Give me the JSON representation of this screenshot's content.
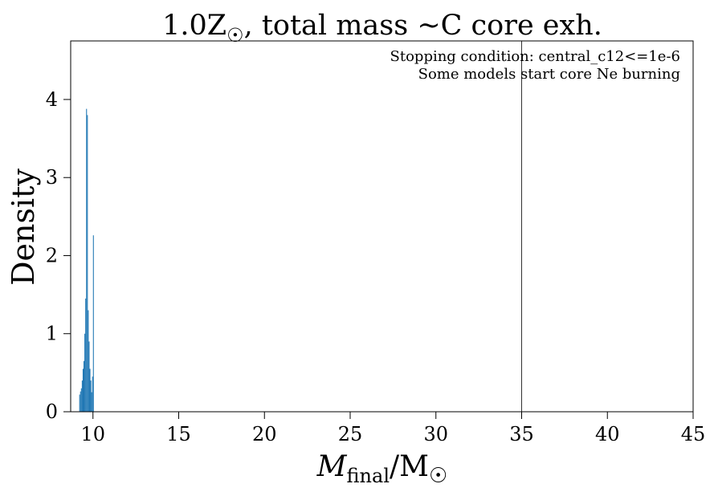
{
  "chart_data": {
    "type": "bar",
    "title": "1.0Z☉, total mass ~C core exh.",
    "title_parts": {
      "main": "1.0Z",
      "sub": "☉",
      "rest": ", total mass ~C core exh."
    },
    "xlabel": "M_final / M☉",
    "xlabel_parts": {
      "m": "M",
      "sub": "final",
      "slash": "/M",
      "sun": "☉"
    },
    "ylabel": "Density",
    "annotations": [
      "Stopping condition: central_c12<=1e-6",
      "Some models start core Ne burning"
    ],
    "xlim": [
      8.7,
      45
    ],
    "ylim": [
      0,
      4.75
    ],
    "x_ticks": [
      10,
      15,
      20,
      25,
      30,
      35,
      40,
      45
    ],
    "y_ticks": [
      0,
      1,
      2,
      3,
      4
    ],
    "vline_x": 35,
    "bar_color": "#1f77b4",
    "bin_width": 0.05,
    "bins": [
      [
        9.2,
        0.22
      ],
      [
        9.25,
        0.26
      ],
      [
        9.3,
        0.3
      ],
      [
        9.35,
        0.4
      ],
      [
        9.4,
        0.55
      ],
      [
        9.45,
        0.65
      ],
      [
        9.5,
        1.0
      ],
      [
        9.55,
        1.45
      ],
      [
        9.6,
        3.88
      ],
      [
        9.65,
        3.8
      ],
      [
        9.7,
        1.3
      ],
      [
        9.75,
        0.9
      ],
      [
        9.8,
        0.55
      ],
      [
        9.85,
        0.4
      ],
      [
        9.9,
        0.25
      ],
      [
        9.95,
        0.45
      ],
      [
        10.0,
        2.26
      ]
    ]
  }
}
